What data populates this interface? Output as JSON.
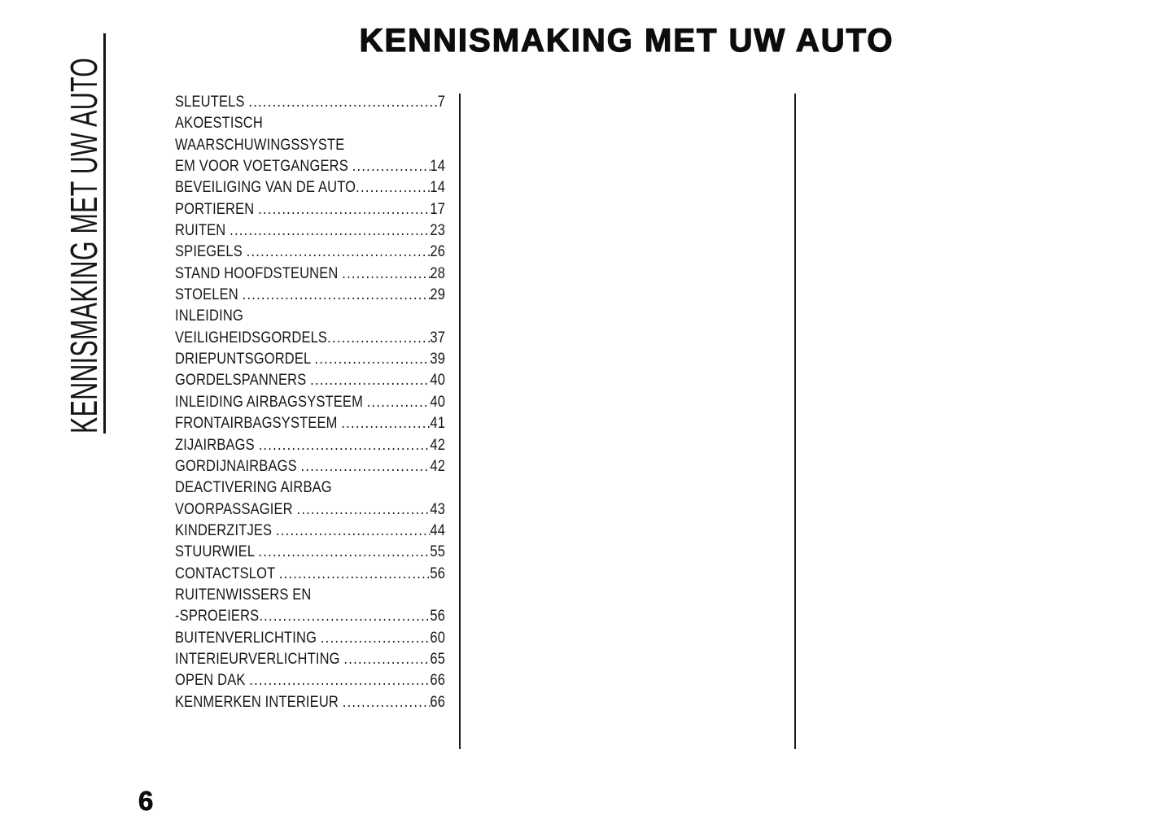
{
  "colors": {
    "background": "#ffffff",
    "text": "#141414"
  },
  "header": {
    "title": "KENNISMAKING MET UW AUTO"
  },
  "sidebar": {
    "vertical_label": "KENNISMAKING MET UW AUTO"
  },
  "footer": {
    "page_number": "6"
  },
  "toc": {
    "entries": [
      {
        "label": "SLEUTELS ",
        "page": "7"
      },
      {
        "label": "AKOESTISCH",
        "page": null
      },
      {
        "label": "WAARSCHUWINGSSYSTE",
        "page": null
      },
      {
        "label": "EM VOOR VOETGANGERS ",
        "page": "14"
      },
      {
        "label": "BEVEILIGING VAN DE AUTO",
        "page": "14"
      },
      {
        "label": "PORTIEREN ",
        "page": "17"
      },
      {
        "label": "RUITEN ",
        "page": "23"
      },
      {
        "label": "SPIEGELS ",
        "page": "26"
      },
      {
        "label": "STAND HOOFDSTEUNEN ",
        "page": "28"
      },
      {
        "label": "STOELEN ",
        "page": "29"
      },
      {
        "label": "INLEIDING",
        "page": null
      },
      {
        "label": "VEILIGHEIDSGORDELS",
        "page": "37"
      },
      {
        "label": "DRIEPUNTSGORDEL ",
        "page": "39"
      },
      {
        "label": "GORDELSPANNERS ",
        "page": "40"
      },
      {
        "label": "INLEIDING AIRBAGSYSTEEM ",
        "page": "40"
      },
      {
        "label": "FRONTAIRBAGSYSTEEM ",
        "page": "41"
      },
      {
        "label": "ZIJAIRBAGS ",
        "page": "42"
      },
      {
        "label": "GORDIJNAIRBAGS ",
        "page": "42"
      },
      {
        "label": "DEACTIVERING AIRBAG",
        "page": null
      },
      {
        "label": "VOORPASSAGIER ",
        "page": "43"
      },
      {
        "label": "KINDERZITJES ",
        "page": "44"
      },
      {
        "label": "STUURWIEL ",
        "page": "55"
      },
      {
        "label": "CONTACTSLOT ",
        "page": "56"
      },
      {
        "label": "RUITENWISSERS EN",
        "page": null
      },
      {
        "label": "-SPROEIERS",
        "page": "56"
      },
      {
        "label": "BUITENVERLICHTING ",
        "page": "60"
      },
      {
        "label": "INTERIEURVERLICHTING ",
        "page": "65"
      },
      {
        "label": "OPEN DAK ",
        "page": "66"
      },
      {
        "label": "KENMERKEN INTERIEUR ",
        "page": "66"
      }
    ]
  }
}
